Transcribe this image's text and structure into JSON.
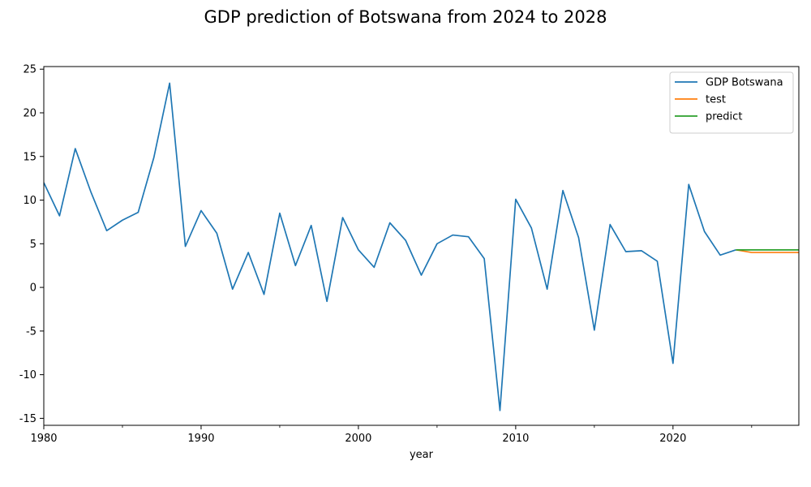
{
  "chart_data": {
    "type": "line",
    "title": "GDP prediction of Botswana from 2024 to 2028",
    "xlabel": "year",
    "ylabel": "",
    "xlim": [
      1980,
      2028
    ],
    "ylim": [
      -15.8,
      25.3
    ],
    "x_ticks": [
      1980,
      1990,
      2000,
      2010,
      2020
    ],
    "x_minor_ticks": [
      1985,
      1995,
      2005,
      2015,
      2025
    ],
    "y_ticks": [
      -15,
      -10,
      -5,
      0,
      5,
      10,
      15,
      20,
      25
    ],
    "grid": false,
    "legend_position": "top-right",
    "series": [
      {
        "name": "GDP Botswana",
        "color": "#1f77b4",
        "x": [
          1980,
          1981,
          1982,
          1983,
          1984,
          1985,
          1986,
          1987,
          1988,
          1989,
          1990,
          1991,
          1992,
          1993,
          1994,
          1995,
          1996,
          1997,
          1998,
          1999,
          2000,
          2001,
          2002,
          2003,
          2004,
          2005,
          2006,
          2007,
          2008,
          2009,
          2010,
          2011,
          2012,
          2013,
          2014,
          2015,
          2016,
          2017,
          2018,
          2019,
          2020,
          2021,
          2022,
          2023,
          2024
        ],
        "values": [
          12.0,
          8.2,
          15.9,
          10.9,
          6.5,
          7.7,
          8.6,
          14.9,
          23.4,
          4.7,
          8.8,
          6.2,
          -0.2,
          4.0,
          -0.8,
          8.5,
          2.5,
          7.1,
          -1.6,
          8.0,
          4.3,
          2.3,
          7.4,
          5.4,
          1.4,
          5.0,
          6.0,
          5.8,
          3.3,
          -14.1,
          10.1,
          6.8,
          -0.2,
          11.1,
          5.7,
          -4.9,
          7.2,
          4.1,
          4.2,
          3.0,
          -8.7,
          11.8,
          6.4,
          3.7,
          4.3
        ]
      },
      {
        "name": "test",
        "color": "#ff7f0e",
        "x": [
          2024,
          2025,
          2026,
          2027,
          2028
        ],
        "values": [
          4.3,
          4.0,
          4.0,
          4.0,
          4.0
        ]
      },
      {
        "name": "predict",
        "color": "#2ca02c",
        "x": [
          2024,
          2025,
          2026,
          2027,
          2028
        ],
        "values": [
          4.3,
          4.3,
          4.3,
          4.3,
          4.3
        ]
      }
    ]
  }
}
